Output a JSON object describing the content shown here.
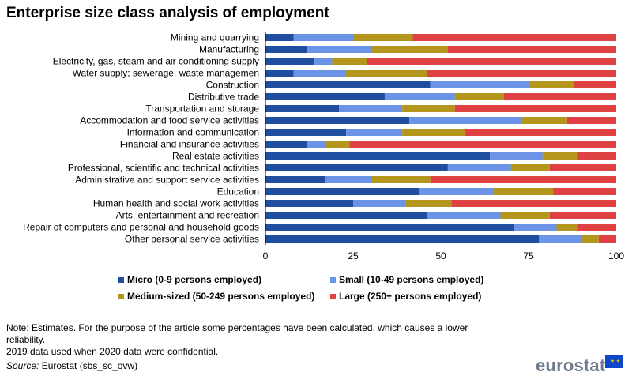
{
  "title": "Enterprise size class analysis of employment",
  "chart_data": {
    "type": "bar",
    "orientation": "horizontal",
    "stacked": true,
    "categories": [
      "Mining and quarrying",
      "Manufacturing",
      "Electricity, gas, steam and air conditioning supply",
      "Water supply; sewerage, waste managemen",
      "Construction",
      "Distributive trade",
      "Transportation and storage",
      "Accommodation and food service activities",
      "Information and communication",
      "Financial and insurance activities",
      "Real estate activities",
      "Professional, scientific and technical activities",
      "Administrative and support service activities",
      "Education",
      "Human health and social work activities",
      "Arts, entertainment and recreation",
      "Repair of computers and personal and household goods",
      "Other personal service activities"
    ],
    "series": [
      {
        "name": "Micro (0-9 persons employed)",
        "color": "#1f4ea1",
        "values": [
          8,
          12,
          14,
          8,
          47,
          34,
          21,
          41,
          23,
          12,
          64,
          52,
          17,
          44,
          25,
          46,
          71,
          78
        ]
      },
      {
        "name": "Small (10-49 persons employed)",
        "color": "#6b93e6",
        "values": [
          17,
          18,
          5,
          15,
          28,
          20,
          18,
          32,
          16,
          5,
          15,
          18,
          13,
          21,
          15,
          21,
          12,
          12
        ]
      },
      {
        "name": "Medium-sized (50-249 persons employed)",
        "color": "#b4961c",
        "values": [
          17,
          22,
          10,
          23,
          13,
          14,
          15,
          13,
          18,
          7,
          10,
          11,
          17,
          17,
          13,
          14,
          6,
          5
        ]
      },
      {
        "name": "Large (250+ persons employed)",
        "color": "#e04143",
        "values": [
          58,
          48,
          71,
          54,
          12,
          32,
          46,
          14,
          43,
          76,
          11,
          19,
          53,
          18,
          47,
          19,
          11,
          5
        ]
      }
    ],
    "xlim": [
      0,
      100
    ],
    "xticks": [
      0,
      25,
      50,
      75,
      100
    ],
    "xlabel": "",
    "ylabel": "",
    "legend_position": "bottom",
    "grid": false
  },
  "notes": {
    "line1": "Note: Estimates. For the purpose of the article some percentages have been calculated, which causes a lower",
    "line2": "reliability.",
    "line3": "2019 data used when 2020 data were confidential.",
    "source_label": "Source:",
    "source_text": " Eurostat (sbs_sc_ovw)"
  },
  "logo": {
    "text": "eurostat"
  }
}
